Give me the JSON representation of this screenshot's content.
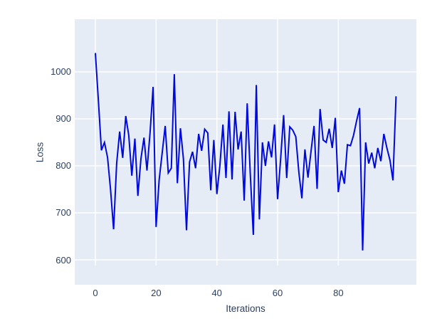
{
  "chart_data": {
    "type": "line",
    "title": "",
    "xlabel": "Iterations",
    "ylabel": "Loss",
    "x_ticks": [
      0,
      20,
      40,
      60,
      80
    ],
    "y_ticks": [
      600,
      700,
      800,
      900,
      1000
    ],
    "x_range": [
      -6.8,
      105.7
    ],
    "y_range": [
      547,
      1112
    ],
    "grid": true,
    "legend_position": "none",
    "line_color": "#0009dc",
    "plot_bg_color": "#e5ecf6",
    "grid_color": "#ffffff",
    "label_color": "#2a3f5f",
    "x": [
      0,
      1,
      2,
      3,
      4,
      5,
      6,
      7,
      8,
      9,
      10,
      11,
      12,
      13,
      14,
      15,
      16,
      17,
      18,
      19,
      20,
      21,
      22,
      23,
      24,
      25,
      26,
      27,
      28,
      29,
      30,
      31,
      32,
      33,
      34,
      35,
      36,
      37,
      38,
      39,
      40,
      41,
      42,
      43,
      44,
      45,
      46,
      47,
      48,
      49,
      50,
      51,
      52,
      53,
      54,
      55,
      56,
      57,
      58,
      59,
      60,
      61,
      62,
      63,
      64,
      65,
      66,
      67,
      68,
      69,
      70,
      71,
      72,
      73,
      74,
      75,
      76,
      77,
      78,
      79,
      80,
      81,
      82,
      83,
      84,
      85,
      86,
      87,
      88,
      89,
      90,
      91,
      92,
      93,
      94,
      95,
      96,
      97,
      98,
      99
    ],
    "y": [
      1040,
      937,
      833,
      850,
      818,
      750,
      665,
      805,
      873,
      817,
      906,
      865,
      779,
      858,
      736,
      815,
      860,
      790,
      870,
      968,
      670,
      770,
      828,
      885,
      785,
      795,
      995,
      763,
      880,
      815,
      663,
      808,
      830,
      795,
      868,
      832,
      878,
      870,
      748,
      855,
      740,
      800,
      888,
      774,
      916,
      771,
      915,
      835,
      873,
      726,
      933,
      784,
      653,
      972,
      686,
      850,
      800,
      852,
      818,
      888,
      729,
      815,
      908,
      774,
      883,
      876,
      862,
      786,
      731,
      835,
      775,
      830,
      885,
      751,
      921,
      855,
      850,
      879,
      838,
      902,
      744,
      790,
      762,
      845,
      843,
      865,
      895,
      923,
      620,
      850,
      805,
      828,
      795,
      838,
      810,
      868,
      838,
      812,
      769,
      948
    ]
  }
}
